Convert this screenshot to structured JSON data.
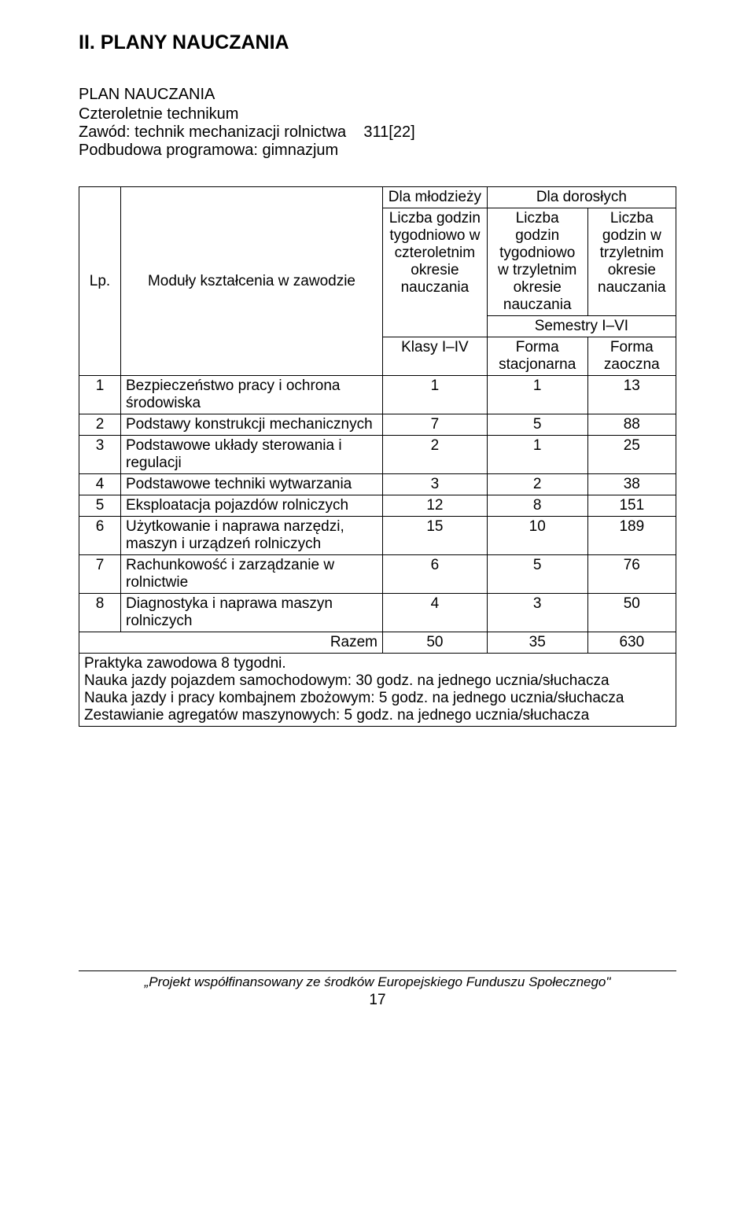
{
  "title": "II. PLANY NAUCZANIA",
  "subtitle": "PLAN NAUCZANIA",
  "desc1": "Czteroletnie technikum",
  "desc2_label": "Zawód: technik mechanizacji rolnictwa",
  "desc2_code": "311[22]",
  "desc3": "Podbudowa programowa: gimnazjum",
  "header": {
    "lp": "Lp.",
    "modules": "Moduły kształcenia w zawodzie",
    "youth": "Dla młodzieży",
    "adults": "Dla dorosłych",
    "col1": "Liczba godzin tygodniowo w czteroletnim okresie nauczania",
    "col2": "Liczba godzin tygodniowo w trzyletnim okresie nauczania",
    "col3": "Liczba godzin w trzyletnim okresie nauczania",
    "semesters": "Semestry I–VI",
    "klasy": "Klasy I–IV",
    "form_stat": "Forma stacjonarna",
    "form_zao": "Forma zaoczna"
  },
  "rows": [
    {
      "n": "1",
      "name": "Bezpieczeństwo pracy i ochrona środowiska",
      "a": "1",
      "b": "1",
      "c": "13"
    },
    {
      "n": "2",
      "name": "Podstawy konstrukcji mechanicznych",
      "a": "7",
      "b": "5",
      "c": "88"
    },
    {
      "n": "3",
      "name": "Podstawowe układy sterowania i regulacji",
      "a": "2",
      "b": "1",
      "c": "25"
    },
    {
      "n": "4",
      "name": "Podstawowe techniki wytwarzania",
      "a": "3",
      "b": "2",
      "c": "38"
    },
    {
      "n": "5",
      "name": "Eksploatacja pojazdów rolniczych",
      "a": "12",
      "b": "8",
      "c": "151"
    },
    {
      "n": "6",
      "name": "Użytkowanie i naprawa narzędzi, maszyn i urządzeń rolniczych",
      "a": "15",
      "b": "10",
      "c": "189"
    },
    {
      "n": "7",
      "name": "Rachunkowość i zarządzanie w rolnictwie",
      "a": "6",
      "b": "5",
      "c": "76"
    },
    {
      "n": "8",
      "name": "Diagnostyka i naprawa maszyn rolniczych",
      "a": "4",
      "b": "3",
      "c": "50"
    }
  ],
  "sum": {
    "label": "Razem",
    "a": "50",
    "b": "35",
    "c": "630"
  },
  "notes": [
    "Praktyka zawodowa 8 tygodni.",
    "Nauka jazdy pojazdem samochodowym: 30 godz. na jednego ucznia/słuchacza",
    "Nauka jazdy i pracy kombajnem zbożowym: 5 godz. na jednego ucznia/słuchacza",
    "Zestawianie agregatów maszynowych: 5 godz. na jednego ucznia/słuchacza"
  ],
  "footer": "„Projekt współfinansowany ze środków Europejskiego Funduszu Społecznego\"",
  "pagenum": "17",
  "style": {
    "body_bg": "#ffffff",
    "text_color": "#000000",
    "border_color": "#000000",
    "h1_fontsize": 25,
    "body_fontsize": 19,
    "table_fontsize": 19,
    "footer_fontsize": 17
  }
}
